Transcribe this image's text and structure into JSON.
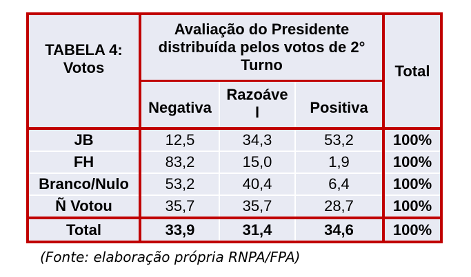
{
  "table": {
    "corner_title_line1": "TABELA 4:",
    "corner_title_line2": "Votos",
    "group_header": "Avaliação do Presidente distribuída pelos votos de 2° Turno",
    "columns": [
      "Negativa",
      "Razoável",
      "Positiva"
    ],
    "razoavel_wrapped": [
      "Razoáve",
      "l"
    ],
    "total_header": "Total",
    "rows": [
      {
        "label": "JB",
        "values": [
          "12,5",
          "34,3",
          "53,2"
        ],
        "total": "100%"
      },
      {
        "label": "FH",
        "values": [
          "83,2",
          "15,0",
          "1,9"
        ],
        "total": "100%"
      },
      {
        "label": "Branco/Nulo",
        "values": [
          "53,2",
          "40,4",
          "6,4"
        ],
        "total": "100%"
      },
      {
        "label": "Ñ Votou",
        "values": [
          "35,7",
          "35,7",
          "28,7"
        ],
        "total": "100%"
      }
    ],
    "total_row": {
      "label": "Total",
      "values": [
        "33,9",
        "31,4",
        "34,6"
      ],
      "total": "100%"
    }
  },
  "caption": "(Fonte: elaboração própria RNPA/FPA)"
}
